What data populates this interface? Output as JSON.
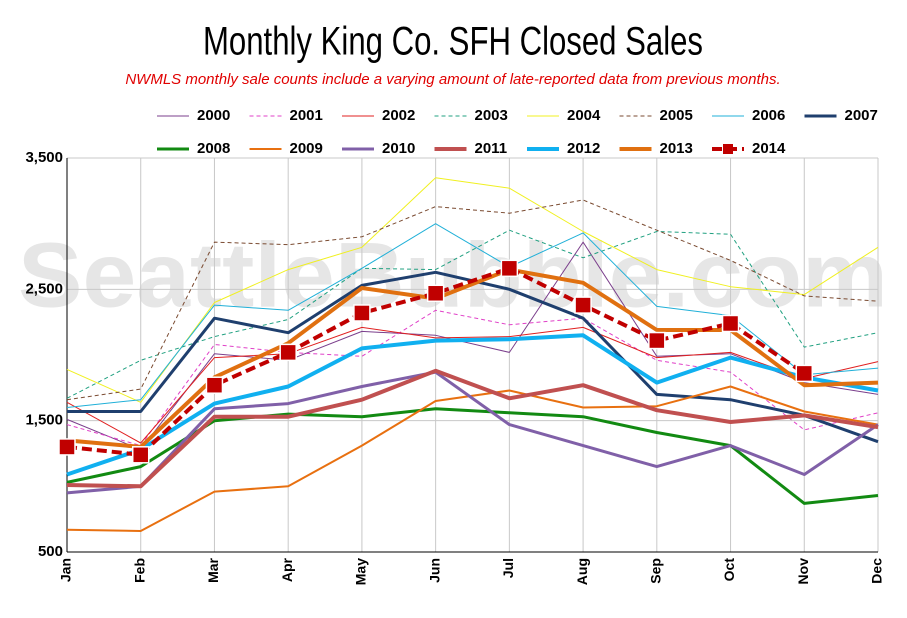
{
  "chart_data": {
    "type": "line",
    "title": "Monthly King Co. SFH Closed Sales",
    "subtitle": "NWMLS monthly sale counts include a varying amount of late-reported  data from previous months.",
    "watermark": "SeattleBubble.com",
    "categories": [
      "Jan",
      "Feb",
      "Mar",
      "Apr",
      "May",
      "Jun",
      "Jul",
      "Aug",
      "Sep",
      "Oct",
      "Nov",
      "Dec"
    ],
    "ylim": [
      500,
      3500
    ],
    "yticks": [
      500,
      {
        "value": 1500,
        "label": "1,500"
      },
      {
        "value": 2500,
        "label": "2,500"
      },
      {
        "value": 3500,
        "label": "3,500"
      }
    ],
    "grid": true,
    "legend": "top",
    "series": [
      {
        "name": "2000",
        "color": "#7b3f8c",
        "width": 1,
        "style": "solid",
        "values": [
          1510,
          1280,
          2010,
          1960,
          2180,
          2150,
          2020,
          2860,
          1990,
          2010,
          1790,
          1700
        ]
      },
      {
        "name": "2001",
        "color": "#e040c8",
        "width": 1,
        "style": "dashed",
        "values": [
          1470,
          1310,
          2080,
          2020,
          1990,
          2340,
          2230,
          2280,
          1960,
          1870,
          1430,
          1560
        ]
      },
      {
        "name": "2002",
        "color": "#e02020",
        "width": 1,
        "style": "solid",
        "values": [
          1640,
          1330,
          1980,
          2010,
          2210,
          2130,
          2140,
          2210,
          1980,
          2020,
          1820,
          1950
        ]
      },
      {
        "name": "2003",
        "color": "#20a080",
        "width": 1,
        "style": "dashed",
        "values": [
          1670,
          1960,
          2140,
          2270,
          2660,
          2650,
          2950,
          2740,
          2940,
          2920,
          2060,
          2170
        ]
      },
      {
        "name": "2004",
        "color": "#f0f020",
        "width": 1,
        "style": "solid",
        "values": [
          1890,
          1640,
          2400,
          2650,
          2820,
          3350,
          3270,
          2940,
          2650,
          2520,
          2460,
          2820
        ]
      },
      {
        "name": "2005",
        "color": "#7a4a30",
        "width": 1,
        "style": "dashed",
        "values": [
          1660,
          1740,
          2860,
          2840,
          2900,
          3130,
          3080,
          3180,
          2950,
          2720,
          2450,
          2410
        ]
      },
      {
        "name": "2006",
        "color": "#20b0d8",
        "width": 1,
        "style": "solid",
        "values": [
          1600,
          1660,
          2380,
          2340,
          2660,
          3000,
          2670,
          2930,
          2370,
          2300,
          1850,
          1900
        ]
      },
      {
        "name": "2007",
        "color": "#1f3f6e",
        "width": 3,
        "style": "solid",
        "values": [
          1570,
          1570,
          2280,
          2170,
          2530,
          2630,
          2500,
          2280,
          1700,
          1660,
          1540,
          1340
        ]
      },
      {
        "name": "2008",
        "color": "#128a12",
        "width": 3,
        "style": "solid",
        "values": [
          1030,
          1150,
          1500,
          1550,
          1530,
          1590,
          1560,
          1530,
          1410,
          1310,
          870,
          930
        ]
      },
      {
        "name": "2009",
        "color": "#e87010",
        "width": 2,
        "style": "solid",
        "values": [
          670,
          660,
          960,
          1000,
          1310,
          1650,
          1730,
          1600,
          1610,
          1760,
          1570,
          1470
        ]
      },
      {
        "name": "2010",
        "color": "#8060a8",
        "width": 3,
        "style": "solid",
        "values": [
          950,
          1000,
          1590,
          1630,
          1760,
          1870,
          1470,
          1310,
          1150,
          1310,
          1090,
          1470
        ]
      },
      {
        "name": "2011",
        "color": "#c05050",
        "width": 4,
        "style": "solid",
        "values": [
          1010,
          1000,
          1530,
          1530,
          1660,
          1880,
          1670,
          1770,
          1580,
          1490,
          1540,
          1450
        ]
      },
      {
        "name": "2012",
        "color": "#10b0f0",
        "width": 4,
        "style": "solid",
        "values": [
          1090,
          1280,
          1630,
          1760,
          2050,
          2110,
          2120,
          2150,
          1790,
          1980,
          1830,
          1730
        ]
      },
      {
        "name": "2013",
        "color": "#e07010",
        "width": 4,
        "style": "solid",
        "values": [
          1350,
          1300,
          1830,
          2090,
          2510,
          2430,
          2650,
          2550,
          2190,
          2190,
          1770,
          1790
        ]
      },
      {
        "name": "2014",
        "color": "#c00000",
        "width": 4,
        "style": "dashed",
        "marker": "square",
        "values": [
          1300,
          1240,
          1770,
          2020,
          2320,
          2470,
          2660,
          2380,
          2110,
          2240,
          1860,
          null
        ]
      }
    ]
  }
}
